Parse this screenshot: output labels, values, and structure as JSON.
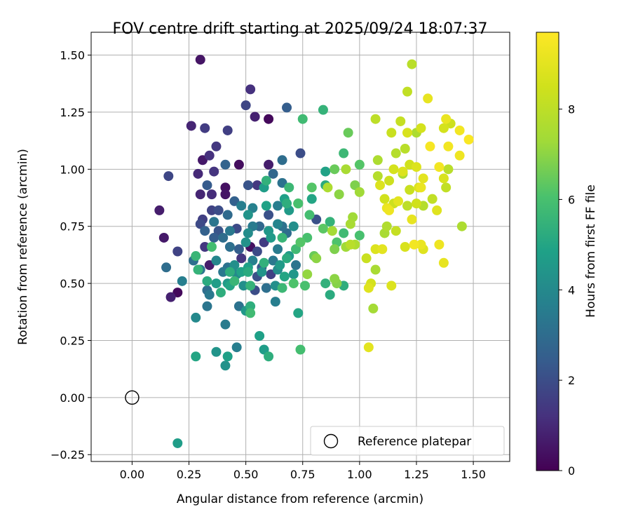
{
  "chart_data": {
    "type": "scatter",
    "title": "FOV centre drift starting at 2025/09/24 18:07:37",
    "xlabel": "Angular distance from reference (arcmin)",
    "ylabel": "Rotation from reference (arcmin)",
    "xlim": [
      -0.18,
      1.66
    ],
    "ylim": [
      -0.28,
      1.6
    ],
    "xticks": [
      "0.00",
      "0.25",
      "0.50",
      "0.75",
      "1.00",
      "1.25",
      "1.50"
    ],
    "yticks": [
      "−0.25",
      "0.00",
      "0.25",
      "0.50",
      "0.75",
      "1.00",
      "1.25",
      "1.50"
    ],
    "grid": true,
    "legend": {
      "position": "lower-right",
      "entries": [
        "Reference platepar"
      ]
    },
    "reference_point": {
      "x": 0.0,
      "y": 0.0,
      "label": "Reference platepar"
    },
    "colorbar": {
      "label": "Hours from first FF file",
      "range": [
        0,
        9.7
      ],
      "ticks": [
        "0",
        "2",
        "4",
        "6",
        "8"
      ],
      "colormap": "viridis"
    },
    "points": [
      {
        "x": 0.3,
        "y": 1.48,
        "h": 0.5
      },
      {
        "x": 0.52,
        "y": 1.35,
        "h": 1.2
      },
      {
        "x": 0.5,
        "y": 1.28,
        "h": 1.8
      },
      {
        "x": 0.68,
        "y": 1.27,
        "h": 2.5
      },
      {
        "x": 0.26,
        "y": 1.19,
        "h": 0.9
      },
      {
        "x": 0.32,
        "y": 1.18,
        "h": 1.5
      },
      {
        "x": 0.42,
        "y": 1.17,
        "h": 1.6
      },
      {
        "x": 0.54,
        "y": 1.23,
        "h": 0.8
      },
      {
        "x": 0.6,
        "y": 1.22,
        "h": 0.2
      },
      {
        "x": 0.37,
        "y": 1.1,
        "h": 1.4
      },
      {
        "x": 0.34,
        "y": 1.06,
        "h": 1.2
      },
      {
        "x": 0.31,
        "y": 1.04,
        "h": 0.6
      },
      {
        "x": 0.29,
        "y": 0.98,
        "h": 1.0
      },
      {
        "x": 0.36,
        "y": 0.99,
        "h": 1.3
      },
      {
        "x": 0.47,
        "y": 1.02,
        "h": 0.3
      },
      {
        "x": 0.41,
        "y": 1.02,
        "h": 2.7
      },
      {
        "x": 0.6,
        "y": 1.02,
        "h": 0.7
      },
      {
        "x": 0.66,
        "y": 1.04,
        "h": 3.0
      },
      {
        "x": 0.74,
        "y": 1.07,
        "h": 2.0
      },
      {
        "x": 0.16,
        "y": 0.97,
        "h": 1.8
      },
      {
        "x": 0.33,
        "y": 0.93,
        "h": 2.4
      },
      {
        "x": 0.3,
        "y": 0.89,
        "h": 0.9
      },
      {
        "x": 0.35,
        "y": 0.89,
        "h": 1.1
      },
      {
        "x": 0.41,
        "y": 0.92,
        "h": 0.4
      },
      {
        "x": 0.41,
        "y": 0.89,
        "h": 0.5
      },
      {
        "x": 0.51,
        "y": 0.93,
        "h": 2.2
      },
      {
        "x": 0.55,
        "y": 0.93,
        "h": 1.4
      },
      {
        "x": 0.58,
        "y": 0.92,
        "h": 4.7
      },
      {
        "x": 0.59,
        "y": 0.95,
        "h": 5.4
      },
      {
        "x": 0.62,
        "y": 0.98,
        "h": 2.8
      },
      {
        "x": 0.66,
        "y": 0.94,
        "h": 3.2
      },
      {
        "x": 0.69,
        "y": 0.92,
        "h": 5.7
      },
      {
        "x": 0.12,
        "y": 0.82,
        "h": 0.7
      },
      {
        "x": 0.35,
        "y": 0.82,
        "h": 1.7
      },
      {
        "x": 0.38,
        "y": 0.82,
        "h": 2.0
      },
      {
        "x": 0.3,
        "y": 0.76,
        "h": 1.9
      },
      {
        "x": 0.31,
        "y": 0.78,
        "h": 1.6
      },
      {
        "x": 0.36,
        "y": 0.77,
        "h": 3.3
      },
      {
        "x": 0.42,
        "y": 0.8,
        "h": 2.9
      },
      {
        "x": 0.45,
        "y": 0.86,
        "h": 2.6
      },
      {
        "x": 0.48,
        "y": 0.84,
        "h": 3.6
      },
      {
        "x": 0.51,
        "y": 0.8,
        "h": 4.4
      },
      {
        "x": 0.53,
        "y": 0.83,
        "h": 3.7
      },
      {
        "x": 0.59,
        "y": 0.84,
        "h": 4.9
      },
      {
        "x": 0.6,
        "y": 0.8,
        "h": 2.1
      },
      {
        "x": 0.64,
        "y": 0.84,
        "h": 3.6
      },
      {
        "x": 0.67,
        "y": 0.87,
        "h": 4.8
      },
      {
        "x": 0.68,
        "y": 0.85,
        "h": 5.3
      },
      {
        "x": 0.69,
        "y": 0.82,
        "h": 4.6
      },
      {
        "x": 0.73,
        "y": 0.85,
        "h": 5.9
      },
      {
        "x": 0.14,
        "y": 0.7,
        "h": 0.6
      },
      {
        "x": 0.32,
        "y": 0.73,
        "h": 2.6
      },
      {
        "x": 0.38,
        "y": 0.73,
        "h": 2.2
      },
      {
        "x": 0.43,
        "y": 0.73,
        "h": 3.4
      },
      {
        "x": 0.46,
        "y": 0.74,
        "h": 1.9
      },
      {
        "x": 0.51,
        "y": 0.72,
        "h": 4.1
      },
      {
        "x": 0.53,
        "y": 0.75,
        "h": 3.5
      },
      {
        "x": 0.56,
        "y": 0.75,
        "h": 2.8
      },
      {
        "x": 0.6,
        "y": 0.73,
        "h": 4.5
      },
      {
        "x": 0.64,
        "y": 0.76,
        "h": 3.8
      },
      {
        "x": 0.66,
        "y": 0.75,
        "h": 3.2
      },
      {
        "x": 0.68,
        "y": 0.72,
        "h": 3.0
      },
      {
        "x": 0.71,
        "y": 0.75,
        "h": 4.2
      },
      {
        "x": 0.2,
        "y": 0.64,
        "h": 1.7
      },
      {
        "x": 0.32,
        "y": 0.66,
        "h": 1.4
      },
      {
        "x": 0.35,
        "y": 0.66,
        "h": 5.9
      },
      {
        "x": 0.36,
        "y": 0.7,
        "h": 2.5
      },
      {
        "x": 0.4,
        "y": 0.7,
        "h": 3.0
      },
      {
        "x": 0.43,
        "y": 0.66,
        "h": 3.1
      },
      {
        "x": 0.47,
        "y": 0.65,
        "h": 2.5
      },
      {
        "x": 0.5,
        "y": 0.68,
        "h": 4.3
      },
      {
        "x": 0.52,
        "y": 0.66,
        "h": 0.4
      },
      {
        "x": 0.55,
        "y": 0.64,
        "h": 1.9
      },
      {
        "x": 0.58,
        "y": 0.68,
        "h": 1.5
      },
      {
        "x": 0.61,
        "y": 0.7,
        "h": 4.6
      },
      {
        "x": 0.64,
        "y": 0.65,
        "h": 3.5
      },
      {
        "x": 0.66,
        "y": 0.7,
        "h": 5.6
      },
      {
        "x": 0.69,
        "y": 0.62,
        "h": 4.6
      },
      {
        "x": 0.72,
        "y": 0.65,
        "h": 5.8
      },
      {
        "x": 0.74,
        "y": 0.68,
        "h": 6.2
      },
      {
        "x": 0.27,
        "y": 0.6,
        "h": 3.1
      },
      {
        "x": 0.28,
        "y": 0.62,
        "h": 5.6
      },
      {
        "x": 0.34,
        "y": 0.58,
        "h": 0.7
      },
      {
        "x": 0.37,
        "y": 0.6,
        "h": 3.9
      },
      {
        "x": 0.42,
        "y": 0.57,
        "h": 3.2
      },
      {
        "x": 0.45,
        "y": 0.58,
        "h": 4.2
      },
      {
        "x": 0.48,
        "y": 0.61,
        "h": 1.3
      },
      {
        "x": 0.51,
        "y": 0.57,
        "h": 4.8
      },
      {
        "x": 0.53,
        "y": 0.6,
        "h": 3.7
      },
      {
        "x": 0.57,
        "y": 0.57,
        "h": 2.3
      },
      {
        "x": 0.58,
        "y": 0.59,
        "h": 5.4
      },
      {
        "x": 0.62,
        "y": 0.6,
        "h": 3.4
      },
      {
        "x": 0.65,
        "y": 0.58,
        "h": 4.6
      },
      {
        "x": 0.68,
        "y": 0.61,
        "h": 5.2
      },
      {
        "x": 0.72,
        "y": 0.58,
        "h": 3.3
      },
      {
        "x": 0.15,
        "y": 0.57,
        "h": 3.0
      },
      {
        "x": 0.29,
        "y": 0.56,
        "h": 5.5
      },
      {
        "x": 0.3,
        "y": 0.56,
        "h": 3.3
      },
      {
        "x": 0.4,
        "y": 0.55,
        "h": 3.4
      },
      {
        "x": 0.43,
        "y": 0.55,
        "h": 5.3
      },
      {
        "x": 0.46,
        "y": 0.54,
        "h": 4.0
      },
      {
        "x": 0.48,
        "y": 0.55,
        "h": 4.9
      },
      {
        "x": 0.51,
        "y": 0.55,
        "h": 5.2
      },
      {
        "x": 0.55,
        "y": 0.53,
        "h": 2.1
      },
      {
        "x": 0.57,
        "y": 0.55,
        "h": 4.4
      },
      {
        "x": 0.61,
        "y": 0.54,
        "h": 1.6
      },
      {
        "x": 0.64,
        "y": 0.56,
        "h": 4.1
      },
      {
        "x": 0.67,
        "y": 0.53,
        "h": 5.0
      },
      {
        "x": 0.71,
        "y": 0.54,
        "h": 4.5
      },
      {
        "x": 0.22,
        "y": 0.51,
        "h": 3.6
      },
      {
        "x": 0.33,
        "y": 0.51,
        "h": 5.2
      },
      {
        "x": 0.37,
        "y": 0.5,
        "h": 4.7
      },
      {
        "x": 0.42,
        "y": 0.5,
        "h": 4.6
      },
      {
        "x": 0.45,
        "y": 0.51,
        "h": 5.6
      },
      {
        "x": 0.49,
        "y": 0.49,
        "h": 4.2
      },
      {
        "x": 0.52,
        "y": 0.49,
        "h": 5.5
      },
      {
        "x": 0.54,
        "y": 0.47,
        "h": 2.0
      },
      {
        "x": 0.59,
        "y": 0.48,
        "h": 3.1
      },
      {
        "x": 0.63,
        "y": 0.49,
        "h": 4.2
      },
      {
        "x": 0.66,
        "y": 0.48,
        "h": 5.7
      },
      {
        "x": 0.71,
        "y": 0.5,
        "h": 6.1
      },
      {
        "x": 0.17,
        "y": 0.44,
        "h": 0.8
      },
      {
        "x": 0.2,
        "y": 0.46,
        "h": 0.2
      },
      {
        "x": 0.33,
        "y": 0.47,
        "h": 3.0
      },
      {
        "x": 0.34,
        "y": 0.45,
        "h": 3.4
      },
      {
        "x": 0.39,
        "y": 0.46,
        "h": 5.3
      },
      {
        "x": 0.43,
        "y": 0.49,
        "h": 5.0
      },
      {
        "x": 0.47,
        "y": 0.4,
        "h": 3.2
      },
      {
        "x": 0.5,
        "y": 0.38,
        "h": 4.5
      },
      {
        "x": 0.52,
        "y": 0.37,
        "h": 5.8
      },
      {
        "x": 0.52,
        "y": 0.4,
        "h": 5.3
      },
      {
        "x": 0.63,
        "y": 0.42,
        "h": 3.6
      },
      {
        "x": 0.73,
        "y": 0.37,
        "h": 5.0
      },
      {
        "x": 0.28,
        "y": 0.35,
        "h": 4.0
      },
      {
        "x": 0.33,
        "y": 0.4,
        "h": 3.3
      },
      {
        "x": 0.41,
        "y": 0.32,
        "h": 3.5
      },
      {
        "x": 0.56,
        "y": 0.27,
        "h": 4.8
      },
      {
        "x": 0.28,
        "y": 0.18,
        "h": 5.0
      },
      {
        "x": 0.37,
        "y": 0.2,
        "h": 4.4
      },
      {
        "x": 0.41,
        "y": 0.14,
        "h": 4.3
      },
      {
        "x": 0.42,
        "y": 0.18,
        "h": 4.8
      },
      {
        "x": 0.46,
        "y": 0.22,
        "h": 3.6
      },
      {
        "x": 0.58,
        "y": 0.21,
        "h": 4.7
      },
      {
        "x": 0.6,
        "y": 0.18,
        "h": 5.3
      },
      {
        "x": 0.74,
        "y": 0.21,
        "h": 5.9
      },
      {
        "x": 0.2,
        "y": -0.2,
        "h": 4.7
      },
      {
        "x": 0.75,
        "y": 1.22,
        "h": 5.8
      },
      {
        "x": 0.84,
        "y": 1.26,
        "h": 5.5
      },
      {
        "x": 0.73,
        "y": 0.85,
        "h": 6.0
      },
      {
        "x": 0.79,
        "y": 0.92,
        "h": 6.2
      },
      {
        "x": 0.79,
        "y": 0.87,
        "h": 5.0
      },
      {
        "x": 0.78,
        "y": 0.8,
        "h": 5.9
      },
      {
        "x": 0.81,
        "y": 0.78,
        "h": 2.1
      },
      {
        "x": 0.84,
        "y": 0.74,
        "h": 6.3
      },
      {
        "x": 0.85,
        "y": 0.99,
        "h": 4.9
      },
      {
        "x": 0.89,
        "y": 1.0,
        "h": 6.5
      },
      {
        "x": 0.85,
        "y": 0.93,
        "h": 5.2
      },
      {
        "x": 0.86,
        "y": 0.92,
        "h": 7.6
      },
      {
        "x": 0.87,
        "y": 0.77,
        "h": 5.5
      },
      {
        "x": 0.88,
        "y": 0.73,
        "h": 7.4
      },
      {
        "x": 0.89,
        "y": 0.65,
        "h": 6.8
      },
      {
        "x": 0.77,
        "y": 0.7,
        "h": 6.0
      },
      {
        "x": 0.8,
        "y": 0.62,
        "h": 6.5
      },
      {
        "x": 0.81,
        "y": 0.61,
        "h": 7.0
      },
      {
        "x": 0.77,
        "y": 0.54,
        "h": 7.1
      },
      {
        "x": 0.76,
        "y": 0.49,
        "h": 6.0
      },
      {
        "x": 0.85,
        "y": 0.5,
        "h": 5.4
      },
      {
        "x": 0.87,
        "y": 0.45,
        "h": 5.2
      },
      {
        "x": 0.89,
        "y": 0.52,
        "h": 7.0
      },
      {
        "x": 0.9,
        "y": 0.5,
        "h": 6.9
      },
      {
        "x": 0.93,
        "y": 0.49,
        "h": 5.3
      },
      {
        "x": 0.9,
        "y": 0.68,
        "h": 6.1
      },
      {
        "x": 0.94,
        "y": 0.66,
        "h": 7.3
      },
      {
        "x": 0.93,
        "y": 0.72,
        "h": 5.8
      },
      {
        "x": 0.96,
        "y": 0.76,
        "h": 7.5
      },
      {
        "x": 0.97,
        "y": 0.79,
        "h": 7.3
      },
      {
        "x": 0.91,
        "y": 0.89,
        "h": 7.0
      },
      {
        "x": 0.93,
        "y": 1.07,
        "h": 5.7
      },
      {
        "x": 0.94,
        "y": 1.0,
        "h": 7.5
      },
      {
        "x": 0.95,
        "y": 1.16,
        "h": 6.5
      },
      {
        "x": 0.98,
        "y": 0.93,
        "h": 6.8
      },
      {
        "x": 1.0,
        "y": 0.9,
        "h": 7.3
      },
      {
        "x": 1.0,
        "y": 1.02,
        "h": 6.2
      },
      {
        "x": 1.0,
        "y": 0.71,
        "h": 6.0
      },
      {
        "x": 0.96,
        "y": 0.67,
        "h": 7.9
      },
      {
        "x": 0.98,
        "y": 0.67,
        "h": 7.6
      },
      {
        "x": 1.03,
        "y": 0.61,
        "h": 8.3
      },
      {
        "x": 1.04,
        "y": 0.48,
        "h": 8.9
      },
      {
        "x": 1.05,
        "y": 0.5,
        "h": 8.6
      },
      {
        "x": 1.06,
        "y": 0.39,
        "h": 7.4
      },
      {
        "x": 1.07,
        "y": 0.56,
        "h": 7.5
      },
      {
        "x": 1.07,
        "y": 0.65,
        "h": 8.8
      },
      {
        "x": 1.07,
        "y": 1.22,
        "h": 8.0
      },
      {
        "x": 1.04,
        "y": 0.22,
        "h": 9.0
      },
      {
        "x": 1.08,
        "y": 0.97,
        "h": 7.8
      },
      {
        "x": 1.08,
        "y": 1.04,
        "h": 7.6
      },
      {
        "x": 1.09,
        "y": 0.93,
        "h": 8.8
      },
      {
        "x": 1.1,
        "y": 0.65,
        "h": 9.0
      },
      {
        "x": 1.11,
        "y": 0.72,
        "h": 7.5
      },
      {
        "x": 1.11,
        "y": 0.87,
        "h": 8.5
      },
      {
        "x": 1.12,
        "y": 0.75,
        "h": 7.7
      },
      {
        "x": 1.12,
        "y": 0.83,
        "h": 9.2
      },
      {
        "x": 1.13,
        "y": 0.82,
        "h": 9.3
      },
      {
        "x": 1.13,
        "y": 0.95,
        "h": 8.4
      },
      {
        "x": 1.14,
        "y": 0.49,
        "h": 8.8
      },
      {
        "x": 1.14,
        "y": 1.16,
        "h": 8.3
      },
      {
        "x": 1.15,
        "y": 0.85,
        "h": 8.4
      },
      {
        "x": 1.15,
        "y": 1.0,
        "h": 8.6
      },
      {
        "x": 1.16,
        "y": 0.73,
        "h": 8.2
      },
      {
        "x": 1.16,
        "y": 1.07,
        "h": 7.8
      },
      {
        "x": 1.17,
        "y": 0.86,
        "h": 9.0
      },
      {
        "x": 1.18,
        "y": 1.21,
        "h": 8.2
      },
      {
        "x": 1.19,
        "y": 0.99,
        "h": 8.8
      },
      {
        "x": 1.19,
        "y": 0.98,
        "h": 7.6
      },
      {
        "x": 1.2,
        "y": 1.09,
        "h": 7.9
      },
      {
        "x": 1.2,
        "y": 0.66,
        "h": 8.7
      },
      {
        "x": 1.21,
        "y": 1.34,
        "h": 8.1
      },
      {
        "x": 1.21,
        "y": 0.84,
        "h": 8.0
      },
      {
        "x": 1.21,
        "y": 1.16,
        "h": 8.7
      },
      {
        "x": 1.22,
        "y": 1.02,
        "h": 8.5
      },
      {
        "x": 1.22,
        "y": 0.91,
        "h": 8.3
      },
      {
        "x": 1.23,
        "y": 1.46,
        "h": 7.9
      },
      {
        "x": 1.23,
        "y": 0.78,
        "h": 9.1
      },
      {
        "x": 1.24,
        "y": 0.67,
        "h": 9.4
      },
      {
        "x": 1.25,
        "y": 1.16,
        "h": 7.6
      },
      {
        "x": 1.25,
        "y": 1.01,
        "h": 8.8
      },
      {
        "x": 1.25,
        "y": 0.85,
        "h": 8.5
      },
      {
        "x": 1.26,
        "y": 0.92,
        "h": 8.8
      },
      {
        "x": 1.27,
        "y": 0.67,
        "h": 9.2
      },
      {
        "x": 1.27,
        "y": 1.18,
        "h": 8.6
      },
      {
        "x": 1.27,
        "y": 0.92,
        "h": 9.2
      },
      {
        "x": 1.28,
        "y": 0.96,
        "h": 9.0
      },
      {
        "x": 1.28,
        "y": 0.84,
        "h": 7.8
      },
      {
        "x": 1.28,
        "y": 0.65,
        "h": 8.9
      },
      {
        "x": 1.3,
        "y": 1.31,
        "h": 9.1
      },
      {
        "x": 1.31,
        "y": 1.1,
        "h": 9.5
      },
      {
        "x": 1.32,
        "y": 0.87,
        "h": 8.1
      },
      {
        "x": 1.34,
        "y": 0.82,
        "h": 8.9
      },
      {
        "x": 1.35,
        "y": 1.01,
        "h": 9.4
      },
      {
        "x": 1.35,
        "y": 0.67,
        "h": 9.3
      },
      {
        "x": 1.37,
        "y": 1.18,
        "h": 8.6
      },
      {
        "x": 1.37,
        "y": 0.96,
        "h": 8.7
      },
      {
        "x": 1.37,
        "y": 0.59,
        "h": 9.1
      },
      {
        "x": 1.38,
        "y": 1.22,
        "h": 9.2
      },
      {
        "x": 1.38,
        "y": 0.92,
        "h": 8.1
      },
      {
        "x": 1.39,
        "y": 1.1,
        "h": 9.4
      },
      {
        "x": 1.39,
        "y": 1.0,
        "h": 7.9
      },
      {
        "x": 1.4,
        "y": 1.2,
        "h": 8.4
      },
      {
        "x": 1.44,
        "y": 1.17,
        "h": 9.4
      },
      {
        "x": 1.44,
        "y": 1.06,
        "h": 9.3
      },
      {
        "x": 1.45,
        "y": 0.75,
        "h": 7.6
      },
      {
        "x": 1.48,
        "y": 1.13,
        "h": 9.6
      }
    ]
  }
}
